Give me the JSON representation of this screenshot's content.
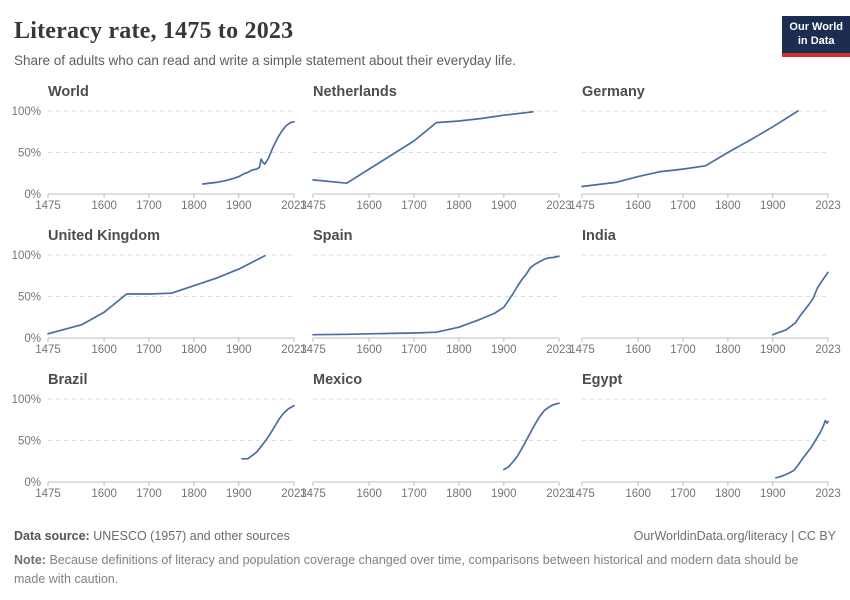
{
  "header": {
    "title": "Literacy rate, 1475 to 2023",
    "subtitle": "Share of adults who can read and write a simple statement about their everyday life."
  },
  "logo": {
    "line1": "Our World",
    "line2": "in Data"
  },
  "axis": {
    "x_range": [
      1475,
      2023
    ],
    "y_range": [
      0,
      100
    ],
    "x_ticks": [
      1475,
      1600,
      1700,
      1800,
      1900,
      2023
    ],
    "y_ticks": [
      {
        "value": 100,
        "label": "100%"
      },
      {
        "value": 50,
        "label": "50%"
      },
      {
        "value": 0,
        "label": "0%"
      }
    ],
    "grid": "dashed horizontal lines at 50% and 100%"
  },
  "chart_data": [
    {
      "type": "line",
      "title": "World",
      "xlim": [
        1475,
        2023
      ],
      "ylim": [
        0,
        100
      ],
      "points": [
        [
          1820,
          12
        ],
        [
          1850,
          14
        ],
        [
          1870,
          16
        ],
        [
          1890,
          19
        ],
        [
          1900,
          21
        ],
        [
          1910,
          24
        ],
        [
          1920,
          26
        ],
        [
          1930,
          29
        ],
        [
          1940,
          30
        ],
        [
          1946,
          32
        ],
        [
          1950,
          42
        ],
        [
          1954,
          38
        ],
        [
          1958,
          36
        ],
        [
          1965,
          42
        ],
        [
          1975,
          55
        ],
        [
          1985,
          66
        ],
        [
          1995,
          75
        ],
        [
          2005,
          82
        ],
        [
          2015,
          86
        ],
        [
          2023,
          87
        ]
      ]
    },
    {
      "type": "line",
      "title": "Netherlands",
      "xlim": [
        1475,
        2023
      ],
      "ylim": [
        0,
        100
      ],
      "points": [
        [
          1475,
          17
        ],
        [
          1550,
          13
        ],
        [
          1600,
          30
        ],
        [
          1650,
          47
        ],
        [
          1700,
          64
        ],
        [
          1750,
          86
        ],
        [
          1800,
          88
        ],
        [
          1850,
          91
        ],
        [
          1900,
          95
        ],
        [
          1965,
          99
        ]
      ]
    },
    {
      "type": "line",
      "title": "Germany",
      "xlim": [
        1475,
        2023
      ],
      "ylim": [
        0,
        100
      ],
      "points": [
        [
          1475,
          9
        ],
        [
          1550,
          14
        ],
        [
          1600,
          21
        ],
        [
          1650,
          27
        ],
        [
          1700,
          30
        ],
        [
          1750,
          34
        ],
        [
          1800,
          50
        ],
        [
          1850,
          65
        ],
        [
          1900,
          81
        ],
        [
          1956,
          100
        ]
      ]
    },
    {
      "type": "line",
      "title": "United Kingdom",
      "xlim": [
        1475,
        2023
      ],
      "ylim": [
        0,
        100
      ],
      "points": [
        [
          1475,
          5
        ],
        [
          1550,
          16
        ],
        [
          1600,
          31
        ],
        [
          1650,
          53
        ],
        [
          1700,
          53
        ],
        [
          1750,
          54
        ],
        [
          1800,
          63
        ],
        [
          1850,
          72
        ],
        [
          1900,
          83
        ],
        [
          1958,
          99
        ]
      ]
    },
    {
      "type": "line",
      "title": "Spain",
      "xlim": [
        1475,
        2023
      ],
      "ylim": [
        0,
        100
      ],
      "points": [
        [
          1475,
          4
        ],
        [
          1550,
          4.5
        ],
        [
          1600,
          5
        ],
        [
          1650,
          5.5
        ],
        [
          1700,
          6
        ],
        [
          1750,
          7
        ],
        [
          1800,
          13
        ],
        [
          1850,
          23
        ],
        [
          1880,
          30
        ],
        [
          1900,
          37
        ],
        [
          1910,
          45
        ],
        [
          1920,
          53
        ],
        [
          1930,
          62
        ],
        [
          1940,
          70
        ],
        [
          1950,
          77
        ],
        [
          1960,
          85
        ],
        [
          1970,
          89
        ],
        [
          1980,
          92
        ],
        [
          1990,
          95
        ],
        [
          2000,
          96.5
        ],
        [
          2010,
          97
        ],
        [
          2023,
          98.5
        ]
      ]
    },
    {
      "type": "line",
      "title": "India",
      "xlim": [
        1475,
        2023
      ],
      "ylim": [
        0,
        100
      ],
      "points": [
        [
          1900,
          4
        ],
        [
          1910,
          6
        ],
        [
          1920,
          8
        ],
        [
          1930,
          10
        ],
        [
          1940,
          14
        ],
        [
          1950,
          18
        ],
        [
          1960,
          26
        ],
        [
          1970,
          33
        ],
        [
          1980,
          40
        ],
        [
          1990,
          48
        ],
        [
          2000,
          61
        ],
        [
          2010,
          69
        ],
        [
          2023,
          79
        ]
      ]
    },
    {
      "type": "line",
      "title": "Brazil",
      "xlim": [
        1475,
        2023
      ],
      "ylim": [
        0,
        100
      ],
      "points": [
        [
          1907,
          28
        ],
        [
          1920,
          28
        ],
        [
          1940,
          36
        ],
        [
          1950,
          43
        ],
        [
          1960,
          50
        ],
        [
          1970,
          58
        ],
        [
          1980,
          67
        ],
        [
          1990,
          76
        ],
        [
          2000,
          83
        ],
        [
          2010,
          88
        ],
        [
          2023,
          92
        ]
      ]
    },
    {
      "type": "line",
      "title": "Mexico",
      "xlim": [
        1475,
        2023
      ],
      "ylim": [
        0,
        100
      ],
      "points": [
        [
          1900,
          15
        ],
        [
          1910,
          18
        ],
        [
          1920,
          24
        ],
        [
          1930,
          31
        ],
        [
          1940,
          40
        ],
        [
          1950,
          50
        ],
        [
          1960,
          60
        ],
        [
          1970,
          70
        ],
        [
          1980,
          79
        ],
        [
          1990,
          86
        ],
        [
          2000,
          90
        ],
        [
          2010,
          93
        ],
        [
          2023,
          95
        ]
      ]
    },
    {
      "type": "line",
      "title": "Egypt",
      "xlim": [
        1475,
        2023
      ],
      "ylim": [
        0,
        100
      ],
      "points": [
        [
          1907,
          5
        ],
        [
          1917,
          6.5
        ],
        [
          1927,
          8.5
        ],
        [
          1937,
          11
        ],
        [
          1947,
          14
        ],
        [
          1957,
          21
        ],
        [
          1966,
          28
        ],
        [
          1976,
          35
        ],
        [
          1986,
          42
        ],
        [
          1996,
          51
        ],
        [
          2006,
          60
        ],
        [
          2013,
          68
        ],
        [
          2017,
          74
        ],
        [
          2021,
          71
        ],
        [
          2023,
          73
        ]
      ]
    }
  ],
  "footer": {
    "datasource_label": "Data source:",
    "datasource_text": "UNESCO (1957) and other sources",
    "link_text": "OurWorldinData.org/literacy | CC BY",
    "note_label": "Note:",
    "note_text": "Because definitions of literacy and population coverage changed over time, comparisons between historical and modern data should be made with caution."
  },
  "colors": {
    "line": "#4a6da3",
    "gridline": "#dcdcdc",
    "axis": "#bcbcbc",
    "tick_label": "#757575",
    "logo_bg": "#1b2d50",
    "logo_red": "#d0312d"
  }
}
